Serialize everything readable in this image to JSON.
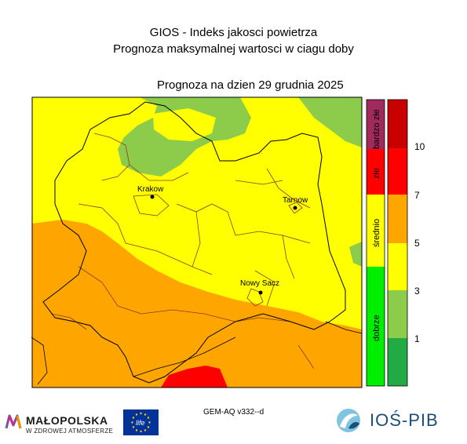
{
  "header": {
    "title": "GIOS - Indeks jakosci powietrza",
    "subtitle": "Prognoza maksymalnej wartosci w ciagu doby",
    "date_label": "Prognoza na dzien  29 grudnia 2025"
  },
  "cities": [
    {
      "name": "Krakow"
    },
    {
      "name": "Tarnow"
    },
    {
      "name": "Nowy Sacz"
    }
  ],
  "categories": [
    {
      "label": "bardzo złe",
      "color": "#a12a5c"
    },
    {
      "label": "złe",
      "color": "#ff0000"
    },
    {
      "label": "średnio",
      "color": "#ffff00"
    },
    {
      "label": "dobrze",
      "color": "#00ee00"
    }
  ],
  "colorbar": {
    "colors": [
      "#c80000",
      "#ff0000",
      "#ffa500",
      "#ffff00",
      "#8ccc4a",
      "#22aa44"
    ],
    "ticks": [
      "10",
      "7",
      "5",
      "3",
      "1"
    ]
  },
  "footer": {
    "model": "GEM-AQ v332--d",
    "malopolska_name": "MAŁOPOLSKA",
    "malopolska_sub": "W ZDROWEJ ATMOSFERZE",
    "eu_label": "life",
    "ios_name": "IOŚ-PIB"
  },
  "colors": {
    "yellow": "#ffff00",
    "orange": "#ffa500",
    "green": "#8ccc4a",
    "red": "#ff0000",
    "eu_blue": "#003399",
    "eu_star": "#ffcc00"
  }
}
